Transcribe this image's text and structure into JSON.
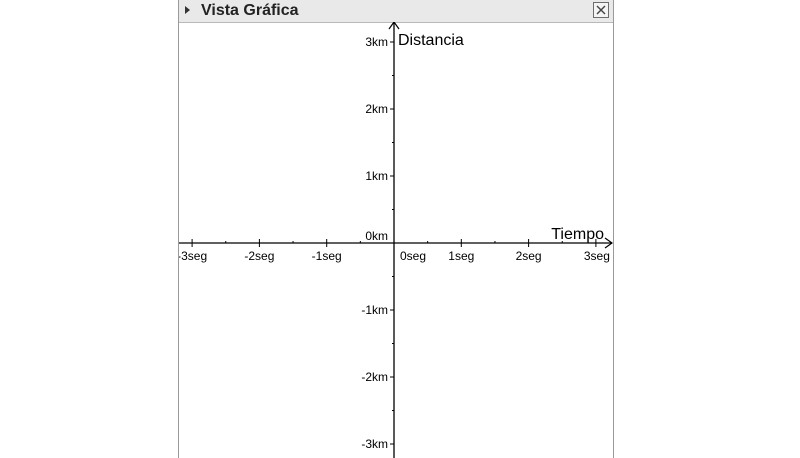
{
  "panel": {
    "title": "Vista Gráfica",
    "toggle_icon": "triangle-right-icon",
    "close_icon": "close-icon"
  },
  "chart_data": {
    "type": "scatter",
    "title": "",
    "xlabel": "Tiempo",
    "ylabel": "Distancia",
    "xlim": [
      -3.2,
      3.2
    ],
    "ylim": [
      -3.2,
      3.2
    ],
    "grid": false,
    "x_ticks": [
      {
        "value": -3,
        "label": "-3seg"
      },
      {
        "value": -2,
        "label": "-2seg"
      },
      {
        "value": -1,
        "label": "-1seg"
      },
      {
        "value": 0,
        "label": "0seg"
      },
      {
        "value": 1,
        "label": "1seg"
      },
      {
        "value": 2,
        "label": "2seg"
      },
      {
        "value": 3,
        "label": "3seg"
      }
    ],
    "y_ticks": [
      {
        "value": 3,
        "label": "3km"
      },
      {
        "value": 2,
        "label": "2km"
      },
      {
        "value": 1,
        "label": "1km"
      },
      {
        "value": 0,
        "label": "0km"
      },
      {
        "value": -1,
        "label": "-1km"
      },
      {
        "value": -2,
        "label": "-2km"
      },
      {
        "value": -3,
        "label": "-3km"
      }
    ],
    "series": []
  }
}
